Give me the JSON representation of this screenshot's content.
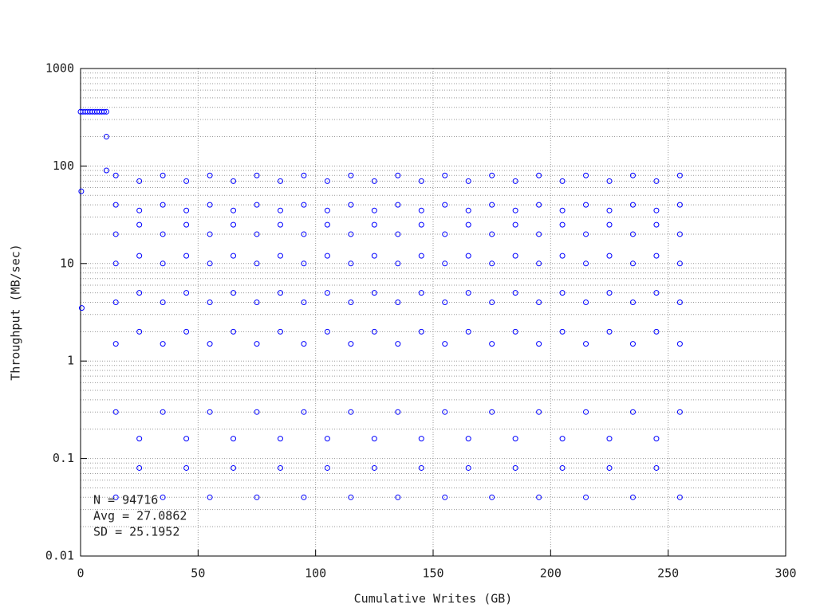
{
  "chart_data": {
    "type": "scatter",
    "xlabel": "Cumulative Writes (GB)",
    "ylabel": "Throughput (MB/sec)",
    "annotations": [
      "N = 94716",
      "Avg = 27.0862",
      "SD = 25.1952"
    ],
    "xlim": [
      0,
      300
    ],
    "xticks": [
      0,
      50,
      100,
      150,
      200,
      250,
      300
    ],
    "ylim": [
      0.01,
      1000
    ],
    "yticks": [
      0.01,
      0.1,
      1,
      10,
      100,
      1000
    ],
    "yminorticks": [
      0.02,
      0.03,
      0.04,
      0.05,
      0.06,
      0.07,
      0.08,
      0.09,
      0.2,
      0.3,
      0.4,
      0.5,
      0.6,
      0.7,
      0.8,
      0.9,
      2,
      3,
      4,
      5,
      6,
      7,
      8,
      9,
      20,
      30,
      40,
      50,
      60,
      70,
      80,
      90,
      200,
      300,
      400,
      500,
      600,
      700,
      800,
      900
    ],
    "ylog": true,
    "grid": true,
    "color": "#0000ff",
    "x": [
      0,
      1,
      2,
      3,
      4,
      5,
      6,
      7,
      8,
      9,
      10,
      11,
      0.3,
      0.5,
      11,
      11,
      15,
      15,
      15,
      15,
      15,
      15,
      15,
      15,
      25,
      25,
      25,
      25,
      25,
      25,
      25,
      25,
      35,
      35,
      35,
      35,
      35,
      35,
      35,
      35,
      45,
      45,
      45,
      45,
      45,
      45,
      45,
      45,
      55,
      55,
      55,
      55,
      55,
      55,
      55,
      55,
      65,
      65,
      65,
      65,
      65,
      65,
      65,
      65,
      75,
      75,
      75,
      75,
      75,
      75,
      75,
      75,
      85,
      85,
      85,
      85,
      85,
      85,
      85,
      85,
      95,
      95,
      95,
      95,
      95,
      95,
      95,
      95,
      105,
      105,
      105,
      105,
      105,
      105,
      105,
      105,
      115,
      115,
      115,
      115,
      115,
      115,
      115,
      115,
      125,
      125,
      125,
      125,
      125,
      125,
      125,
      125,
      135,
      135,
      135,
      135,
      135,
      135,
      135,
      135,
      145,
      145,
      145,
      145,
      145,
      145,
      145,
      145,
      155,
      155,
      155,
      155,
      155,
      155,
      155,
      155,
      165,
      165,
      165,
      165,
      165,
      165,
      165,
      165,
      175,
      175,
      175,
      175,
      175,
      175,
      175,
      175,
      185,
      185,
      185,
      185,
      185,
      185,
      185,
      185,
      195,
      195,
      195,
      195,
      195,
      195,
      195,
      195,
      205,
      205,
      205,
      205,
      205,
      205,
      205,
      205,
      215,
      215,
      215,
      215,
      215,
      215,
      215,
      215,
      225,
      225,
      225,
      225,
      225,
      225,
      225,
      225,
      235,
      235,
      235,
      235,
      235,
      235,
      235,
      235,
      245,
      245,
      245,
      245,
      245,
      245,
      245,
      245,
      255,
      255,
      255,
      255,
      255,
      255,
      255,
      255
    ],
    "y": [
      360,
      360,
      360,
      360,
      360,
      360,
      360,
      360,
      360,
      360,
      360,
      360,
      55,
      3.5,
      200,
      90,
      80,
      40,
      20,
      10,
      4,
      1.5,
      0.3,
      0.04,
      70,
      35,
      25,
      12,
      5,
      2,
      0.16,
      0.08,
      80,
      40,
      20,
      10,
      4,
      1.5,
      0.3,
      0.04,
      70,
      35,
      25,
      12,
      5,
      2,
      0.16,
      0.08,
      80,
      40,
      20,
      10,
      4,
      1.5,
      0.3,
      0.04,
      70,
      35,
      25,
      12,
      5,
      2,
      0.16,
      0.08,
      80,
      40,
      20,
      10,
      4,
      1.5,
      0.3,
      0.04,
      70,
      35,
      25,
      12,
      5,
      2,
      0.16,
      0.08,
      80,
      40,
      20,
      10,
      4,
      1.5,
      0.3,
      0.04,
      70,
      35,
      25,
      12,
      5,
      2,
      0.16,
      0.08,
      80,
      40,
      20,
      10,
      4,
      1.5,
      0.3,
      0.04,
      70,
      35,
      25,
      12,
      5,
      2,
      0.16,
      0.08,
      80,
      40,
      20,
      10,
      4,
      1.5,
      0.3,
      0.04,
      70,
      35,
      25,
      12,
      5,
      2,
      0.16,
      0.08,
      80,
      40,
      20,
      10,
      4,
      1.5,
      0.3,
      0.04,
      70,
      35,
      25,
      12,
      5,
      2,
      0.16,
      0.08,
      80,
      40,
      20,
      10,
      4,
      1.5,
      0.3,
      0.04,
      70,
      35,
      25,
      12,
      5,
      2,
      0.16,
      0.08,
      80,
      40,
      20,
      10,
      4,
      1.5,
      0.3,
      0.04,
      70,
      35,
      25,
      12,
      5,
      2,
      0.16,
      0.08,
      80,
      40,
      20,
      10,
      4,
      1.5,
      0.3,
      0.04,
      70,
      35,
      25,
      12,
      5,
      2,
      0.16,
      0.08,
      80,
      40,
      20,
      10,
      4,
      1.5,
      0.3,
      0.04,
      70,
      35,
      25,
      12,
      5,
      2,
      0.16,
      0.08,
      80,
      40,
      20,
      10,
      4,
      1.5,
      0.3,
      0.04
    ]
  }
}
